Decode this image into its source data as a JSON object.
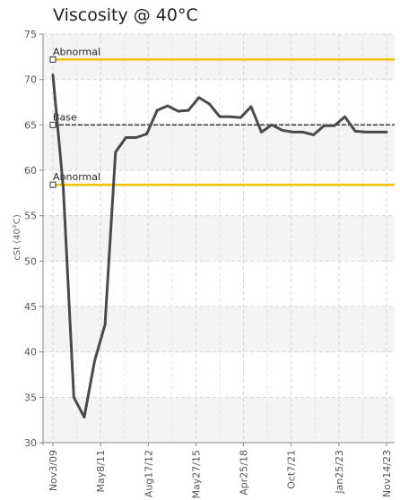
{
  "chart_data": {
    "type": "line",
    "title": "Viscosity @ 40°C",
    "xlabel": "",
    "ylabel": "cSt (40°C)",
    "ylim": [
      30,
      75
    ],
    "y_ticks": [
      30,
      35,
      40,
      45,
      50,
      55,
      60,
      65,
      70,
      75
    ],
    "x_tick_labels": [
      "Nov3/09",
      "May8/11",
      "Aug17/12",
      "May27/15",
      "Apr25/18",
      "Oct7/21",
      "Jan25/23",
      "Nov14/23"
    ],
    "grid": true,
    "reference_lines": [
      {
        "label": "Abnormal",
        "value": 72.2,
        "color": "#f2c200"
      },
      {
        "label": "Base",
        "value": 65.0,
        "color": "#333333"
      },
      {
        "label": "Abnormal",
        "value": 58.4,
        "color": "#f2c200"
      }
    ],
    "series": [
      {
        "color": "#4a4a4a",
        "values": [
          70.5,
          58.0,
          35.0,
          32.8,
          39.0,
          43.0,
          62.0,
          63.6,
          63.6,
          64.0,
          66.6,
          67.1,
          66.5,
          66.6,
          68.0,
          67.3,
          65.9,
          65.9,
          65.8,
          67.0,
          64.2,
          65.0,
          64.4,
          64.2,
          64.2,
          63.9,
          64.9,
          64.9,
          65.9,
          64.3,
          64.2,
          64.2,
          64.2
        ]
      }
    ]
  }
}
